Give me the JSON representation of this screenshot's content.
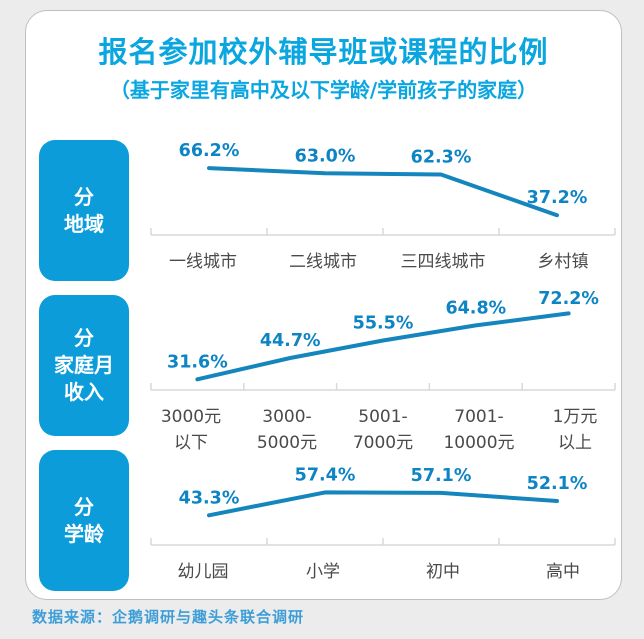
{
  "title": "报名参加校外辅导班或课程的比例",
  "subtitle": "（基于家里有高中及以下学龄/学前孩子的家庭）",
  "footer": {
    "source_text": "数据来源：企鹅调研与趣头条联合调研"
  },
  "colors": {
    "title_blue": "#0aa6e0",
    "box_blue": "#0c9cda",
    "line_blue": "#1586bd",
    "value_label_blue": "#0d84c3",
    "category_gray": "#4a4a4a",
    "axis_gray": "#d9d9d9",
    "footer_blue": "#3e9ed8",
    "page_bg": "#ececec",
    "card_bg": "#ffffff"
  },
  "chart_data": [
    {
      "type": "line",
      "group_label": "分\n地域",
      "categories": [
        "一线城市",
        "二线城市",
        "三四线城市",
        "乡村镇"
      ],
      "values": [
        66.2,
        63.0,
        62.3,
        37.2
      ],
      "unit": "%",
      "ylim": [
        25,
        78
      ],
      "grid": false,
      "legend": "none"
    },
    {
      "type": "line",
      "group_label": "分\n家庭月\n收入",
      "categories": [
        "3000元\n以下",
        "3000-\n5000元",
        "5001-\n7000元",
        "7001-\n10000元",
        "1万元\n以上"
      ],
      "values": [
        31.6,
        44.7,
        55.5,
        64.8,
        72.2
      ],
      "unit": "%",
      "ylim": [
        25,
        78
      ],
      "grid": false,
      "legend": "none"
    },
    {
      "type": "line",
      "group_label": "分\n学龄",
      "categories": [
        "幼儿园",
        "小学",
        "初中",
        "高中"
      ],
      "values": [
        43.3,
        57.4,
        57.1,
        52.1
      ],
      "unit": "%",
      "ylim": [
        25,
        78
      ],
      "grid": false,
      "legend": "none"
    }
  ]
}
